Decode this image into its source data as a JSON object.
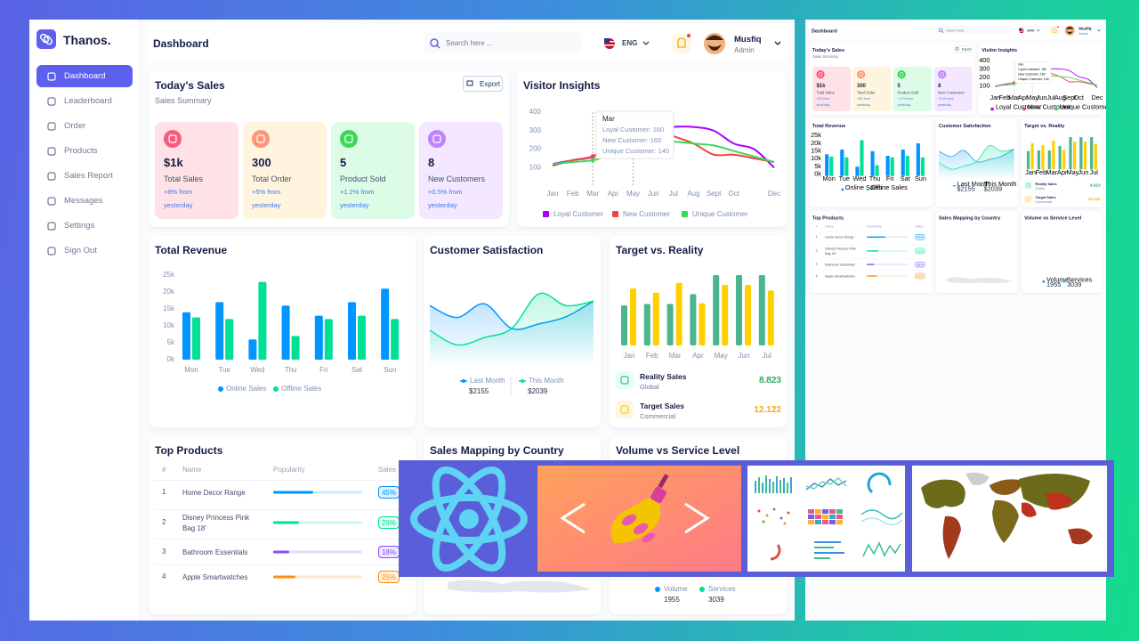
{
  "sidebar": {
    "brand": "Thanos.",
    "nav": [
      "Dashboard",
      "Leaderboard",
      "Order",
      "Products",
      "Sales Report",
      "Messages",
      "Settings",
      "Sign Out"
    ]
  },
  "header": {
    "title": "Dashboard",
    "search": "Search here ...",
    "language": "ENG",
    "user_name": "Musfiq",
    "user_role": "Admin"
  },
  "todays_sales": {
    "title": "Today's Sales",
    "subtitle": "Sales Summary",
    "export": "Export",
    "cards": [
      {
        "value": "$1k",
        "label": "Total Sales",
        "change": "+8% from yesterday",
        "color": "#fa5a7d",
        "background": "#ffe2e5"
      },
      {
        "value": "300",
        "label": "Total Order",
        "change": "+5% from yesterday",
        "color": "#ff947a",
        "background": "#fff4de"
      },
      {
        "value": "5",
        "label": "Product Sold",
        "change": "+1.2% from yesterday",
        "color": "#3cd856",
        "background": "#dcfce7"
      },
      {
        "value": "8",
        "label": "New Customers",
        "change": "+0.5% from yesterday",
        "color": "#bf83ff",
        "background": "#f3e8ff"
      }
    ]
  },
  "visitor_insights": {
    "title": "Visitor Insights",
    "chart_data": {
      "type": "line",
      "categories": [
        "Jan",
        "Feb",
        "Mar",
        "Apr",
        "May",
        "Jun",
        "Jul",
        "Aug",
        "Sept",
        "Oct",
        null,
        "Dec"
      ],
      "ylim": [
        0,
        400
      ],
      "yticks": [
        100,
        200,
        300,
        400
      ],
      "series": [
        {
          "name": "Loyal Customer",
          "color": "#a700ff",
          "values": [
            120,
            140,
            160,
            210,
            260,
            300,
            320,
            320,
            300,
            230,
            200,
            100
          ]
        },
        {
          "name": "New Customer",
          "color": "#ef4444",
          "values": [
            110,
            140,
            160,
            250,
            300,
            310,
            270,
            230,
            170,
            170,
            150,
            130
          ]
        },
        {
          "name": "Unique Customer",
          "color": "#3cd856",
          "values": [
            120,
            130,
            140,
            170,
            200,
            230,
            240,
            230,
            220,
            190,
            160,
            130
          ]
        }
      ],
      "tooltip": {
        "title": "Mar",
        "lines": [
          "Loyal Customer: 160",
          "New Customer: 160",
          "Unique Customer: 140"
        ]
      }
    }
  },
  "total_revenue": {
    "title": "Total Revenue",
    "chart_data": {
      "type": "bar",
      "categories": [
        "Mon",
        "Tue",
        "Wed",
        "Thu",
        "Fri",
        "Sat",
        "Sun"
      ],
      "ylim": [
        0,
        25000
      ],
      "yticks": [
        {
          "value": 0,
          "label": "0k"
        },
        {
          "value": 5000,
          "label": "5k"
        },
        {
          "value": 10000,
          "label": "10k"
        },
        {
          "value": 15000,
          "label": "15k"
        },
        {
          "value": 20000,
          "label": "20k"
        },
        {
          "value": 25000,
          "label": "25k"
        }
      ],
      "series": [
        {
          "name": "Online Sales",
          "color": "#0095ff",
          "values": [
            14000,
            17000,
            6000,
            16000,
            13000,
            17000,
            21000
          ]
        },
        {
          "name": "Offline Sales",
          "color": "#00e096",
          "values": [
            12500,
            12000,
            23000,
            7000,
            12000,
            13000,
            12000
          ]
        }
      ]
    }
  },
  "customer_satisfaction": {
    "title": "Customer Satisfaction",
    "chart_data": {
      "type": "area",
      "series": [
        {
          "name": "Last Month",
          "color": "#0095ff",
          "values": [
            65,
            52,
            67,
            40,
            45,
            53,
            70
          ],
          "total": "$2155"
        },
        {
          "name": "This Month",
          "color": "#07e098",
          "values": [
            38,
            22,
            30,
            40,
            78,
            65,
            70
          ],
          "total": "$2039"
        }
      ]
    }
  },
  "target_reality": {
    "title": "Target vs. Reality",
    "chart_data": {
      "type": "bar",
      "categories": [
        "Jan",
        "Feb",
        "Mar",
        "Apr",
        "May",
        "Jun",
        "Jul"
      ],
      "series": [
        {
          "name": "Reality Sales",
          "subtitle": "Global",
          "total": 8.823,
          "color": "#4ab58e",
          "values": [
            57,
            59,
            59,
            73,
            100,
            100,
            100
          ]
        },
        {
          "name": "Target Sales",
          "subtitle": "Commercial",
          "total": 12.122,
          "color": "#ffcf00",
          "values": [
            81,
            75,
            89,
            60,
            86,
            86,
            78
          ]
        }
      ]
    }
  },
  "top_products": {
    "title": "Top Products",
    "columns": [
      "#",
      "Name",
      "Popularity",
      "Sales"
    ],
    "rows": [
      {
        "rank": 1,
        "name": "Home Decor Range",
        "popularity": 45,
        "sales": "45%",
        "color": "#0095ff"
      },
      {
        "rank": 2,
        "name": "Disney Princess Pink Bag 18'",
        "popularity": 29,
        "sales": "29%",
        "color": "#00e096"
      },
      {
        "rank": 3,
        "name": "Bathroom Essentials",
        "popularity": 18,
        "sales": "18%",
        "color": "#884dff"
      },
      {
        "rank": 4,
        "name": "Apple Smartwatches",
        "popularity": 25,
        "sales": "25%",
        "color": "#ff8f0d"
      }
    ]
  },
  "sales_mapping": {
    "title": "Sales Mapping by Country"
  },
  "volume_service": {
    "title": "Volume vs Service Level",
    "chart_data": {
      "type": "bar",
      "series": [
        {
          "name": "Volume",
          "color": "#0095ff",
          "total": 1955
        },
        {
          "name": "Services",
          "color": "#00e096",
          "total": 3039
        }
      ]
    }
  }
}
